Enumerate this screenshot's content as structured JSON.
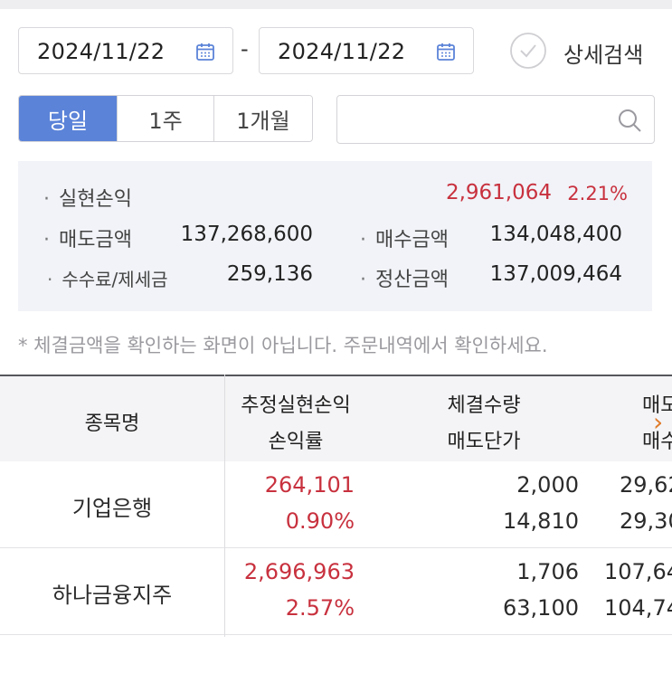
{
  "filters": {
    "start_date": "2024/11/22",
    "end_date": "2024/11/22",
    "separator": "-",
    "detail_search_label": "상세검색",
    "period_tabs": [
      "당일",
      "1주",
      "1개월"
    ],
    "active_tab": "당일",
    "search_placeholder": ""
  },
  "summary": {
    "realized_pl_label": "실현손익",
    "realized_pl_value": "2,961,064",
    "realized_pl_rate": "2.21%",
    "sell_amount_label": "매도금액",
    "sell_amount_value": "137,268,600",
    "buy_amount_label": "매수금액",
    "buy_amount_value": "134,048,400",
    "fee_tax_label": "수수료/제세금",
    "fee_tax_value": "259,136",
    "settlement_label": "정산금액",
    "settlement_value": "137,009,464",
    "bullet": "·"
  },
  "notice": "* 체결금액을 확인하는 화면이 아닙니다. 주문내역에서 확인하세요.",
  "table": {
    "headers": {
      "name": "종목명",
      "est_pl": "추정실현손익",
      "pl_rate": "손익률",
      "exec_qty": "체결수량",
      "sell_price": "매도단가",
      "col4_top": "매도",
      "col4_bottom": "매수"
    },
    "rows": [
      {
        "name": "기업은행",
        "est_pl": "264,101",
        "pl_rate": "0.90%",
        "exec_qty": "2,000",
        "sell_price": "14,810",
        "col4_top": "29,62",
        "col4_bottom": "29,30"
      },
      {
        "name": "하나금융지주",
        "est_pl": "2,696,963",
        "pl_rate": "2.57%",
        "exec_qty": "1,706",
        "sell_price": "63,100",
        "col4_top": "107,64",
        "col4_bottom": "104,74"
      }
    ],
    "scroll_right_icon": "›"
  },
  "colors": {
    "accent": "#5b83d8",
    "profit": "#c8313e",
    "arrow": "#e07b2a"
  }
}
